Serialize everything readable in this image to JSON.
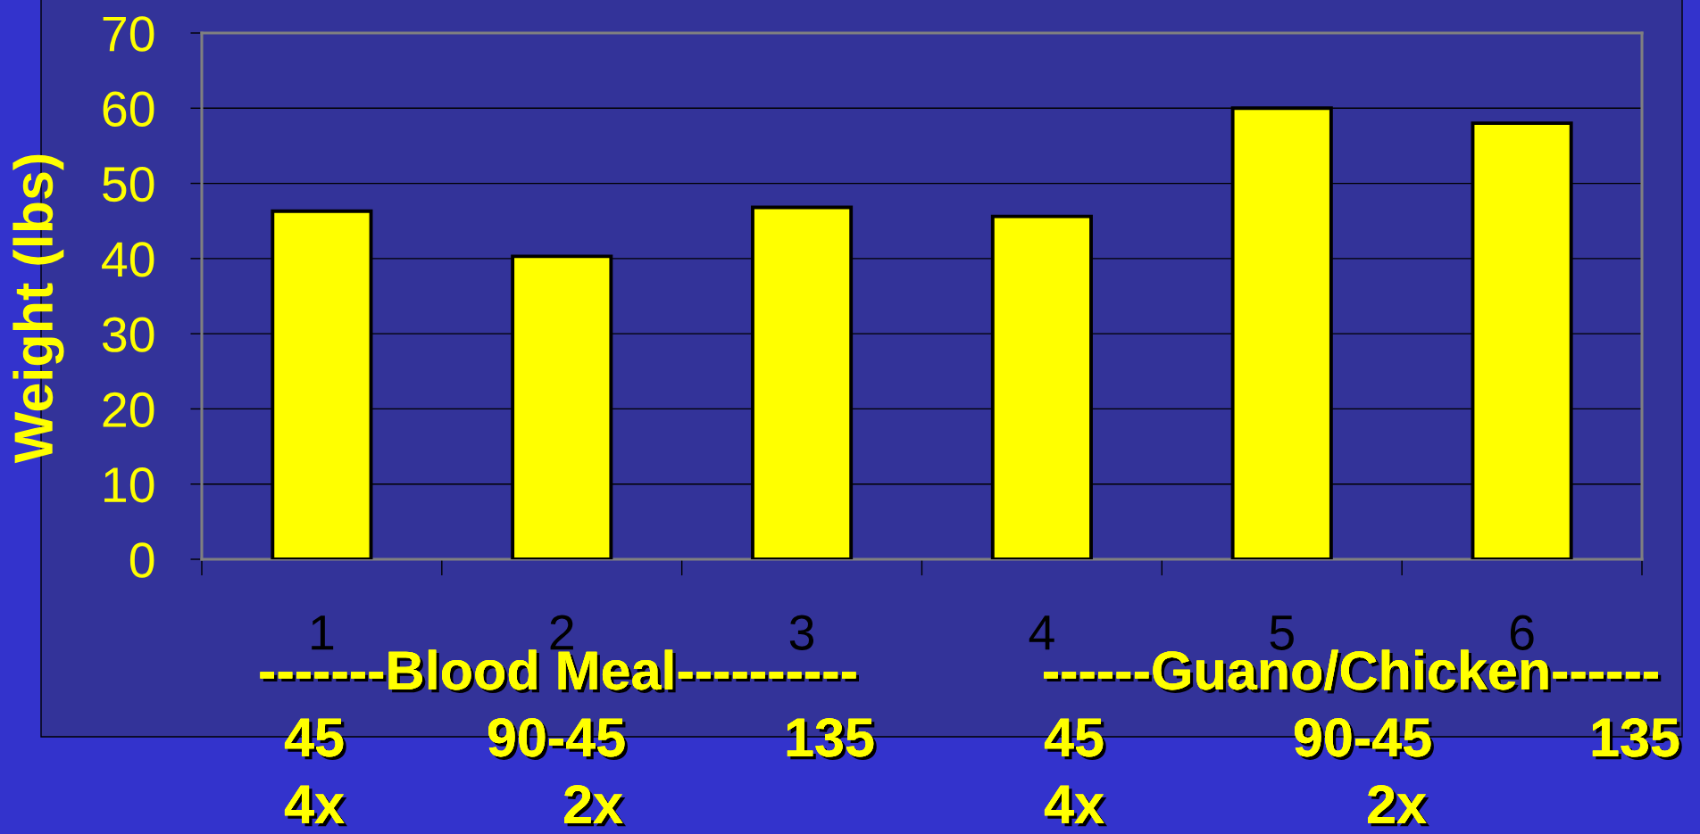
{
  "chart_data": {
    "type": "bar",
    "ylabel": "Weight (lbs)",
    "categories": [
      "1",
      "2",
      "3",
      "4",
      "5",
      "6"
    ],
    "values": [
      46.3,
      40.3,
      46.8,
      45.6,
      60,
      58
    ],
    "color": "#ffff00",
    "ylim": [
      0,
      70
    ],
    "yticks": [
      0,
      10,
      20,
      30,
      40,
      50,
      60,
      70
    ],
    "grid": "y",
    "annotations": [
      "-------Blood Meal----------",
      "------Guano/Chicken------",
      "45",
      "90-45",
      "135",
      "45",
      "90-45",
      "135",
      "4x",
      "2x",
      "4x",
      "2x"
    ]
  }
}
